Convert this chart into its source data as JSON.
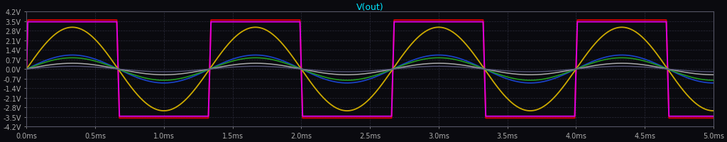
{
  "title": "V(out)",
  "title_color": "#00e5ff",
  "background_color": "#0a0a0f",
  "plot_bg_color": "#0a0a0f",
  "grid_color": "#2a2a3a",
  "axis_color": "#555566",
  "tick_color": "#aaaaaa",
  "xlim": [
    0,
    0.005
  ],
  "ylim": [
    -4.2,
    4.2
  ],
  "xticks": [
    0,
    0.0005,
    0.001,
    0.0015,
    0.002,
    0.0025,
    0.003,
    0.0035,
    0.004,
    0.0045,
    0.005
  ],
  "xtick_labels": [
    "0.0ms",
    "0.5ms",
    "1.0ms",
    "1.5ms",
    "2.0ms",
    "2.5ms",
    "3.0ms",
    "3.5ms",
    "4.0ms",
    "4.5ms",
    "5.0ms"
  ],
  "yticks": [
    -4.2,
    -3.5,
    -2.8,
    -2.1,
    -1.4,
    -0.7,
    0.0,
    0.7,
    1.4,
    2.1,
    2.8,
    3.5,
    4.2
  ],
  "ytick_labels": [
    "-4.2V",
    "-3.5V",
    "-2.8V",
    "-2.1V",
    "-1.4V",
    "-0.7V",
    "0.0V",
    "0.7V",
    "1.4V",
    "2.1V",
    "2.8V",
    "3.5V",
    "4.2V"
  ],
  "freq": 750,
  "sample_rate": 50000,
  "waveforms": [
    {
      "color": "#cc0000",
      "amplitude": 80.0,
      "clip": 3.58,
      "lw": 1.4
    },
    {
      "color": "#dd00dd",
      "amplitude": 80.0,
      "clip": 3.45,
      "lw": 1.4
    },
    {
      "color": "#ccaa00",
      "amplitude": 3.05,
      "clip": 3.05,
      "lw": 1.3
    },
    {
      "color": "#1a44cc",
      "amplitude": 1.02,
      "clip": 1.02,
      "lw": 1.2
    },
    {
      "color": "#229922",
      "amplitude": 0.82,
      "clip": 0.82,
      "lw": 1.2
    },
    {
      "color": "#aaaaaa",
      "amplitude": 0.42,
      "clip": 0.42,
      "lw": 1.1
    },
    {
      "color": "#555577",
      "amplitude": 0.2,
      "clip": 0.2,
      "lw": 1.0
    }
  ]
}
